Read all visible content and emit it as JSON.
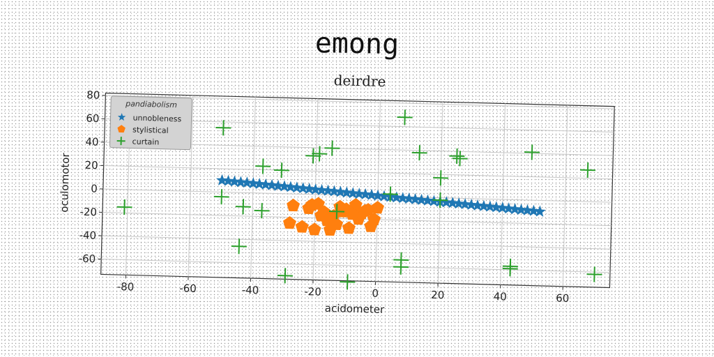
{
  "suptitle": "emong",
  "chart_data": {
    "type": "scatter",
    "title": "deirdre",
    "xlabel": "acidometer",
    "ylabel": "oculomotor",
    "xlim": [
      -88,
      75
    ],
    "ylim": [
      -73,
      82
    ],
    "xticks": [
      -80,
      -60,
      -40,
      -20,
      0,
      20,
      40,
      60
    ],
    "yticks": [
      -60,
      -40,
      -20,
      0,
      20,
      40,
      60,
      80
    ],
    "grid": true,
    "legend": {
      "title": "pandiabolism",
      "position": "upper left"
    },
    "series": [
      {
        "name": "unnobleness",
        "marker": "star",
        "color": "#1f77b4",
        "x": [
          -50,
          -48,
          -46,
          -44,
          -42,
          -40,
          -38,
          -36,
          -34,
          -32,
          -30,
          -28,
          -26,
          -24,
          -22,
          -20,
          -18,
          -16,
          -14,
          -12,
          -10,
          -8,
          -6,
          -4,
          -2,
          0,
          2,
          4,
          6,
          8,
          10,
          12,
          14,
          16,
          18,
          20,
          22,
          24,
          26,
          28,
          30,
          32,
          34,
          36,
          38,
          40,
          42,
          44,
          46,
          48,
          50,
          52
        ],
        "y": [
          10,
          9.6,
          9.2,
          8.8,
          8.5,
          8.1,
          7.7,
          7.3,
          6.9,
          6.5,
          6.2,
          5.8,
          5.4,
          5.0,
          4.6,
          4.2,
          3.8,
          3.5,
          3.1,
          2.7,
          2.3,
          1.9,
          1.5,
          1.2,
          0.8,
          0.4,
          0.0,
          -0.4,
          -0.8,
          -1.2,
          -1.5,
          -1.9,
          -2.3,
          -2.7,
          -3.1,
          -3.5,
          -3.8,
          -4.2,
          -4.6,
          -5.0,
          -5.4,
          -5.8,
          -6.2,
          -6.5,
          -6.9,
          -7.3,
          -7.7,
          -8.1,
          -8.5,
          -8.8,
          -9.2,
          -9.6
        ]
      },
      {
        "name": "stylistical",
        "marker": "pentagon",
        "color": "#ff7f0e",
        "x": [
          -27,
          -22,
          -19,
          -17,
          -14,
          -12,
          -10,
          -7,
          -5,
          -3,
          -1,
          0,
          -24,
          -20,
          -16,
          -13,
          -9,
          -6,
          -2,
          -28,
          -15,
          -11,
          -4,
          -18,
          -8,
          -21
        ],
        "y": [
          -10,
          -12,
          -8,
          -15,
          -18,
          -10,
          -12,
          -8,
          -15,
          -12,
          -20,
          -10,
          -28,
          -30,
          -22,
          -25,
          -28,
          -20,
          -26,
          -25,
          -30,
          -14,
          -13,
          -18,
          -16,
          -9
        ]
      },
      {
        "name": "curtain",
        "marker": "plus",
        "color": "#2ca02c",
        "x": [
          -50,
          -37,
          -31,
          -21,
          -19,
          -15,
          -50,
          -43,
          -37,
          -81,
          -44,
          -29,
          -13,
          -9,
          4,
          8,
          13,
          20,
          25,
          26,
          49,
          67,
          43,
          43,
          70,
          8,
          8,
          20
        ],
        "y": [
          55,
          23,
          20,
          33,
          35,
          40,
          -4,
          -12,
          -15,
          -15,
          -46,
          -70,
          -14,
          -74,
          2,
          68,
          38,
          17,
          36,
          34,
          41,
          27,
          -57,
          -59,
          -62,
          -54,
          -60,
          -2
        ]
      }
    ]
  }
}
